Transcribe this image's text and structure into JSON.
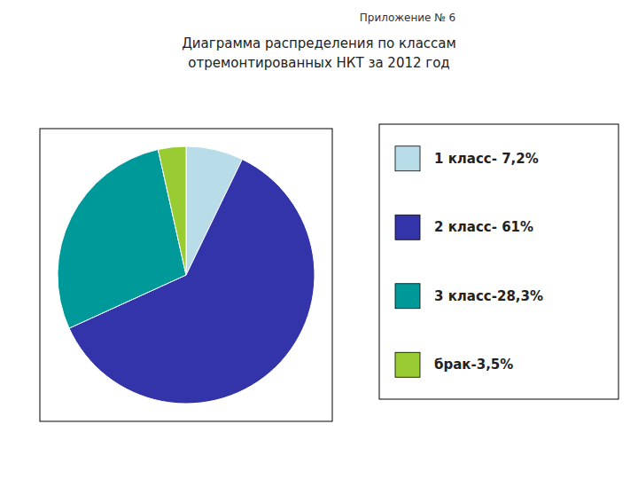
{
  "chart_data": {
    "type": "pie",
    "title": "Диаграмма распределения по классам",
    "subtitle": "отремонтированных НКТ за 2012 год",
    "annotations": [
      "Приложение № 6"
    ],
    "categories": [
      "1 класс- 7,2%",
      "2 класс- 61%",
      "3 класс-28,3%",
      "брак-3,5%"
    ],
    "values": [
      7.2,
      61.0,
      28.3,
      3.5
    ],
    "colors": [
      "#b8dce8",
      "#3333aa",
      "#009999",
      "#99cc33"
    ],
    "legend": "right"
  }
}
